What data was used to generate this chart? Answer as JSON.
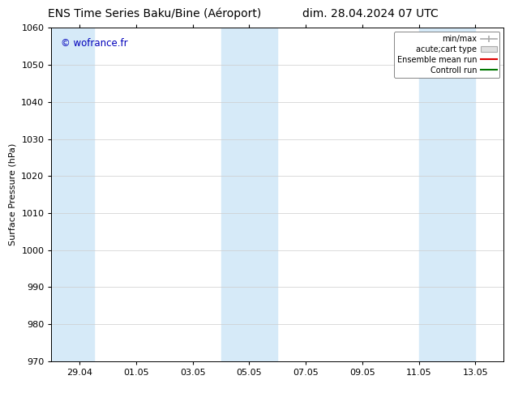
{
  "title_left": "ENS Time Series Baku/Bine (Aéroport)",
  "title_right": "dim. 28.04.2024 07 UTC",
  "ylabel": "Surface Pressure (hPa)",
  "ylim": [
    970,
    1060
  ],
  "yticks": [
    970,
    980,
    990,
    1000,
    1010,
    1020,
    1030,
    1040,
    1050,
    1060
  ],
  "xtick_labels": [
    "29.04",
    "01.05",
    "03.05",
    "05.05",
    "07.05",
    "09.05",
    "11.05",
    "13.05"
  ],
  "watermark": "© wofrance.fr",
  "watermark_color": "#0000bb",
  "bg_color": "#ffffff",
  "plot_bg_color": "#ffffff",
  "band_color": "#d6eaf8",
  "legend_entries": [
    {
      "label": "min/max"
    },
    {
      "label": "acute;cart type"
    },
    {
      "label": "Ensemble mean run"
    },
    {
      "label": "Controll run"
    }
  ],
  "legend_colors": [
    "#aaaaaa",
    "#cccccc",
    "#dd0000",
    "#007700"
  ],
  "title_fontsize": 10,
  "tick_fontsize": 8,
  "ylabel_fontsize": 8
}
